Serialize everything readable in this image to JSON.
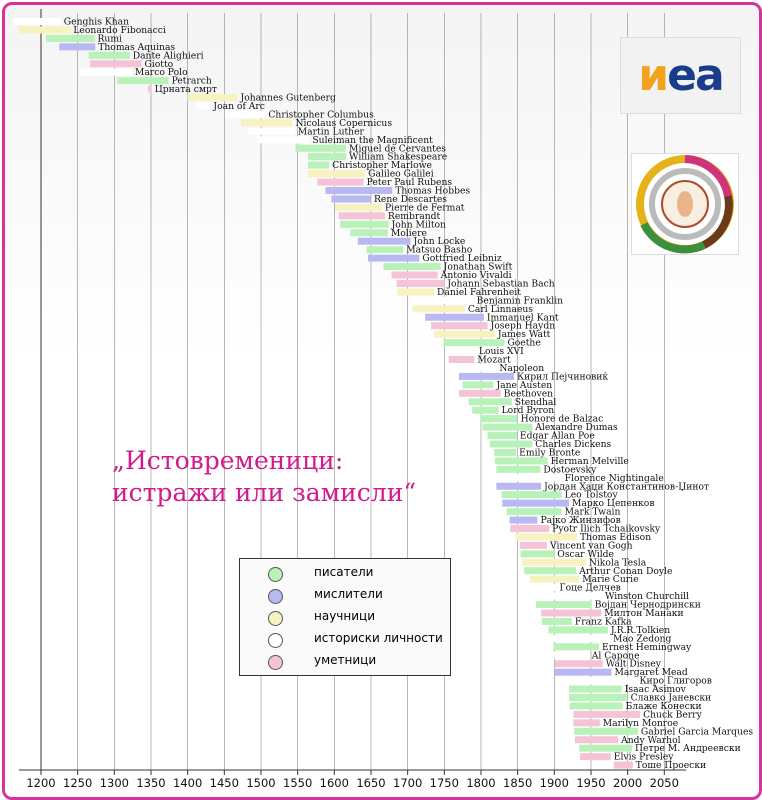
{
  "title_lines": [
    "„Истовременици:",
    "истражи или замисли“"
  ],
  "logo_text": "иеа",
  "legend": [
    {
      "label": "писатели",
      "color": "#b8f2b8"
    },
    {
      "label": "мислители",
      "color": "#b9b9f2"
    },
    {
      "label": "научници",
      "color": "#f7f2bf"
    },
    {
      "label": "историски личности",
      "color": "#ffffff"
    },
    {
      "label": "уметници",
      "color": "#f5c3d8"
    }
  ],
  "chart_data": {
    "type": "timeline",
    "xlim": [
      1170,
      2080
    ],
    "x_ticks": [
      1200,
      1250,
      1300,
      1350,
      1400,
      1450,
      1500,
      1550,
      1600,
      1650,
      1700,
      1750,
      1800,
      1850,
      1900,
      1950,
      2000,
      2050
    ],
    "category_colors": {
      "writer": "#b8f2b8",
      "thinker": "#b9b9f2",
      "scientist": "#f7f2bf",
      "historical": "#ffffff",
      "artist": "#f5c3d8"
    },
    "people": [
      {
        "name": "Genghis Khan",
        "start": 1162,
        "end": 1227,
        "cat": "historical"
      },
      {
        "name": "Leonardo Fibonacci",
        "start": 1170,
        "end": 1240,
        "cat": "scientist"
      },
      {
        "name": "Rumi",
        "start": 1207,
        "end": 1273,
        "cat": "writer"
      },
      {
        "name": "Thomas Aquinas",
        "start": 1225,
        "end": 1274,
        "cat": "thinker"
      },
      {
        "name": "Dante Alighieri",
        "start": 1265,
        "end": 1321,
        "cat": "writer"
      },
      {
        "name": "Giotto",
        "start": 1267,
        "end": 1337,
        "cat": "artist"
      },
      {
        "name": "Marco Polo",
        "start": 1254,
        "end": 1324,
        "cat": "historical"
      },
      {
        "name": "Petrarch",
        "start": 1304,
        "end": 1374,
        "cat": "writer"
      },
      {
        "name": "Црната смрт",
        "start": 1346,
        "end": 1351,
        "cat": "artist"
      },
      {
        "name": "Johannes Gutenberg",
        "start": 1400,
        "end": 1468,
        "cat": "scientist"
      },
      {
        "name": "Joan of Arc",
        "start": 1412,
        "end": 1431,
        "cat": "historical"
      },
      {
        "name": "Christopher Columbus",
        "start": 1451,
        "end": 1506,
        "cat": "historical"
      },
      {
        "name": "Nicolaus Copernicus",
        "start": 1473,
        "end": 1543,
        "cat": "scientist"
      },
      {
        "name": "Martin Luther",
        "start": 1483,
        "end": 1546,
        "cat": "historical"
      },
      {
        "name": "Suleiman the Magnificent",
        "start": 1494,
        "end": 1566,
        "cat": "historical"
      },
      {
        "name": "Miguel de Cervantes",
        "start": 1547,
        "end": 1616,
        "cat": "writer"
      },
      {
        "name": "William Shakespeare",
        "start": 1564,
        "end": 1616,
        "cat": "writer"
      },
      {
        "name": "Christopher Marlowe",
        "start": 1564,
        "end": 1593,
        "cat": "writer"
      },
      {
        "name": "Galileo Galilei",
        "start": 1564,
        "end": 1642,
        "cat": "scientist"
      },
      {
        "name": "Peter Paul Rubens",
        "start": 1577,
        "end": 1640,
        "cat": "artist"
      },
      {
        "name": "Thomas Hobbes",
        "start": 1588,
        "end": 1679,
        "cat": "thinker"
      },
      {
        "name": "Rene Descartes",
        "start": 1596,
        "end": 1650,
        "cat": "thinker"
      },
      {
        "name": "Pierre de Fermat",
        "start": 1601,
        "end": 1665,
        "cat": "scientist"
      },
      {
        "name": "Rembrandt",
        "start": 1606,
        "end": 1669,
        "cat": "artist"
      },
      {
        "name": "John Milton",
        "start": 1608,
        "end": 1674,
        "cat": "writer"
      },
      {
        "name": "Moliere",
        "start": 1622,
        "end": 1673,
        "cat": "writer"
      },
      {
        "name": "John Locke",
        "start": 1632,
        "end": 1704,
        "cat": "thinker"
      },
      {
        "name": "Matsuo Basho",
        "start": 1644,
        "end": 1694,
        "cat": "writer"
      },
      {
        "name": "Gottfried Leibniz",
        "start": 1646,
        "end": 1716,
        "cat": "thinker"
      },
      {
        "name": "Jonathan Swift",
        "start": 1667,
        "end": 1745,
        "cat": "writer"
      },
      {
        "name": "Antonio Vivaldi",
        "start": 1678,
        "end": 1741,
        "cat": "artist"
      },
      {
        "name": "Johann Sebastian Bach",
        "start": 1685,
        "end": 1750,
        "cat": "artist"
      },
      {
        "name": "Daniel Fahrenheit",
        "start": 1686,
        "end": 1736,
        "cat": "scientist"
      },
      {
        "name": "Benjamin Franklin",
        "start": 1706,
        "end": 1790,
        "cat": "historical"
      },
      {
        "name": "Carl Linnaeus",
        "start": 1707,
        "end": 1778,
        "cat": "scientist"
      },
      {
        "name": "Immanuel Kant",
        "start": 1724,
        "end": 1804,
        "cat": "thinker"
      },
      {
        "name": "Joseph Haydn",
        "start": 1732,
        "end": 1809,
        "cat": "artist"
      },
      {
        "name": "James Watt",
        "start": 1736,
        "end": 1819,
        "cat": "scientist"
      },
      {
        "name": "Goethe",
        "start": 1749,
        "end": 1832,
        "cat": "writer"
      },
      {
        "name": "Louis XVI",
        "start": 1754,
        "end": 1793,
        "cat": "historical"
      },
      {
        "name": "Mozart",
        "start": 1756,
        "end": 1791,
        "cat": "artist"
      },
      {
        "name": "Napoleon",
        "start": 1769,
        "end": 1821,
        "cat": "historical"
      },
      {
        "name": "Кирил Пејчиновиќ",
        "start": 1770,
        "end": 1845,
        "cat": "thinker"
      },
      {
        "name": "Jane Austen",
        "start": 1775,
        "end": 1817,
        "cat": "writer"
      },
      {
        "name": "Beethoven",
        "start": 1770,
        "end": 1827,
        "cat": "artist"
      },
      {
        "name": "Stendhal",
        "start": 1783,
        "end": 1842,
        "cat": "writer"
      },
      {
        "name": "Lord Byron",
        "start": 1788,
        "end": 1824,
        "cat": "writer"
      },
      {
        "name": "Honore de Balzac",
        "start": 1799,
        "end": 1850,
        "cat": "writer"
      },
      {
        "name": "Alexandre Dumas",
        "start": 1802,
        "end": 1870,
        "cat": "writer"
      },
      {
        "name": "Edgar Allan Poe",
        "start": 1809,
        "end": 1849,
        "cat": "writer"
      },
      {
        "name": "Charles Dickens",
        "start": 1812,
        "end": 1870,
        "cat": "writer"
      },
      {
        "name": "Emily Bronte",
        "start": 1818,
        "end": 1848,
        "cat": "writer"
      },
      {
        "name": "Herman Melville",
        "start": 1819,
        "end": 1891,
        "cat": "writer"
      },
      {
        "name": "Dostoevsky",
        "start": 1821,
        "end": 1881,
        "cat": "writer"
      },
      {
        "name": "Florence Nightingale",
        "start": 1820,
        "end": 1910,
        "cat": "historical"
      },
      {
        "name": "Јордан Хаџи Константинов-Џинот",
        "start": 1821,
        "end": 1882,
        "cat": "thinker"
      },
      {
        "name": "Leo Tolstoy",
        "start": 1828,
        "end": 1910,
        "cat": "writer"
      },
      {
        "name": "Марко Цепенков",
        "start": 1829,
        "end": 1920,
        "cat": "thinker"
      },
      {
        "name": "Mark Twain",
        "start": 1835,
        "end": 1910,
        "cat": "writer"
      },
      {
        "name": "Рајко Жинзифов",
        "start": 1839,
        "end": 1877,
        "cat": "thinker"
      },
      {
        "name": "Pyotr Ilich Tchaikovsky",
        "start": 1840,
        "end": 1893,
        "cat": "artist"
      },
      {
        "name": "Thomas Edison",
        "start": 1847,
        "end": 1931,
        "cat": "scientist"
      },
      {
        "name": "Vincent van Gogh",
        "start": 1853,
        "end": 1890,
        "cat": "artist"
      },
      {
        "name": "Oscar Wilde",
        "start": 1854,
        "end": 1900,
        "cat": "writer"
      },
      {
        "name": "Nikola Tesla",
        "start": 1856,
        "end": 1943,
        "cat": "scientist"
      },
      {
        "name": "Arthur Conan Doyle",
        "start": 1859,
        "end": 1930,
        "cat": "writer"
      },
      {
        "name": "Marie Curie",
        "start": 1867,
        "end": 1934,
        "cat": "scientist"
      },
      {
        "name": "Гоце Делчев",
        "start": 1872,
        "end": 1903,
        "cat": "historical"
      },
      {
        "name": "Winston Churchill",
        "start": 1874,
        "end": 1965,
        "cat": "historical"
      },
      {
        "name": "Војдан Чернодрински",
        "start": 1875,
        "end": 1951,
        "cat": "writer"
      },
      {
        "name": "Милтон Манаки",
        "start": 1882,
        "end": 1964,
        "cat": "artist"
      },
      {
        "name": "Franz Kafka",
        "start": 1883,
        "end": 1924,
        "cat": "writer"
      },
      {
        "name": "J.R.R.Tolkien",
        "start": 1892,
        "end": 1973,
        "cat": "writer"
      },
      {
        "name": "Mao Zedong",
        "start": 1893,
        "end": 1976,
        "cat": "historical"
      },
      {
        "name": "Ernest Hemingway",
        "start": 1899,
        "end": 1961,
        "cat": "writer"
      },
      {
        "name": "Al Capone",
        "start": 1899,
        "end": 1947,
        "cat": "historical"
      },
      {
        "name": "Walt Disney",
        "start": 1901,
        "end": 1966,
        "cat": "artist"
      },
      {
        "name": "Margaret Mead",
        "start": 1901,
        "end": 1978,
        "cat": "thinker"
      },
      {
        "name": "Кирo Глигоров",
        "start": 1917,
        "end": 2012,
        "cat": "historical"
      },
      {
        "name": "Isaac Asimov",
        "start": 1920,
        "end": 1992,
        "cat": "writer"
      },
      {
        "name": "Славко Јаневски",
        "start": 1920,
        "end": 2000,
        "cat": "writer"
      },
      {
        "name": "Блаже Конески",
        "start": 1921,
        "end": 1993,
        "cat": "writer"
      },
      {
        "name": "Chuck Berry",
        "start": 1926,
        "end": 2017,
        "cat": "artist"
      },
      {
        "name": "Marilyn Monroe",
        "start": 1926,
        "end": 1962,
        "cat": "artist"
      },
      {
        "name": "Gabriel Garcia Marques",
        "start": 1927,
        "end": 2014,
        "cat": "writer"
      },
      {
        "name": "Andy Warhol",
        "start": 1928,
        "end": 1987,
        "cat": "artist"
      },
      {
        "name": "Петре М. Андреевски",
        "start": 1934,
        "end": 2006,
        "cat": "writer"
      },
      {
        "name": "Elvis Presley",
        "start": 1935,
        "end": 1977,
        "cat": "artist"
      },
      {
        "name": "Тоше Проески",
        "start": 1981,
        "end": 2007,
        "cat": "artist"
      }
    ]
  }
}
